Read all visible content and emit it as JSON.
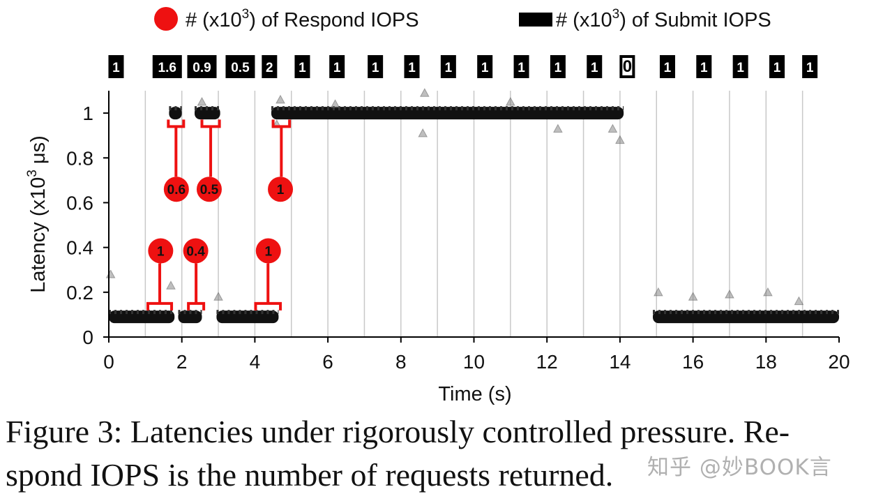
{
  "chart_data": {
    "type": "scatter",
    "xlabel": "Time (s)",
    "ylabel": "Latency (x10",
    "ylabel_sup": "3",
    "ylabel_unit": " μs)",
    "xlim": [
      0,
      20
    ],
    "ylim": [
      0,
      1.1
    ],
    "x_ticks": [
      0,
      2,
      4,
      6,
      8,
      10,
      12,
      14,
      16,
      18,
      20
    ],
    "y_ticks": [
      0,
      0.2,
      0.4,
      0.6,
      0.8,
      1
    ],
    "y_tick_labels": [
      "0",
      "0.2",
      "0.4",
      "0.6",
      "0.8",
      "1"
    ],
    "grid": "vertical lines every 1 s",
    "legend": {
      "placement": "top",
      "respond": {
        "prefix": "# (x10",
        "sup": "3",
        "suffix": ") of Respond IOPS",
        "color": "#ee1111",
        "marker": "circle"
      },
      "submit": {
        "prefix": "# (x10",
        "sup": "3",
        "suffix": ") of Submit IOPS",
        "color": "#000000",
        "marker": "square"
      }
    },
    "latency_segments": [
      {
        "x_start": 0.0,
        "x_end": 1.8,
        "latency": 0.09
      },
      {
        "x_start": 1.65,
        "x_end": 2.0,
        "latency": 1.0
      },
      {
        "x_start": 1.9,
        "x_end": 2.55,
        "latency": 0.09
      },
      {
        "x_start": 2.35,
        "x_end": 3.05,
        "latency": 1.0
      },
      {
        "x_start": 2.95,
        "x_end": 4.65,
        "latency": 0.09
      },
      {
        "x_start": 4.45,
        "x_end": 14.1,
        "latency": 1.0
      },
      {
        "x_start": 14.9,
        "x_end": 20.0,
        "latency": 0.09
      }
    ],
    "outliers": [
      {
        "x": 0.05,
        "y": 0.28
      },
      {
        "x": 1.7,
        "y": 0.23
      },
      {
        "x": 2.55,
        "y": 1.05
      },
      {
        "x": 4.7,
        "y": 1.06
      },
      {
        "x": 4.6,
        "y": 0.95
      },
      {
        "x": 8.65,
        "y": 1.09
      },
      {
        "x": 8.6,
        "y": 0.91
      },
      {
        "x": 12.3,
        "y": 0.93
      },
      {
        "x": 13.8,
        "y": 0.93
      },
      {
        "x": 14.0,
        "y": 0.88
      },
      {
        "x": 15.05,
        "y": 0.2
      },
      {
        "x": 16.0,
        "y": 0.18
      },
      {
        "x": 17.0,
        "y": 0.19
      },
      {
        "x": 18.05,
        "y": 0.2
      },
      {
        "x": 18.9,
        "y": 0.16
      },
      {
        "x": 3.0,
        "y": 0.18
      },
      {
        "x": 11.0,
        "y": 1.05
      },
      {
        "x": 6.2,
        "y": 1.04
      }
    ],
    "submit_iops": [
      {
        "x": 0.2,
        "label": "1",
        "invert": false
      },
      {
        "x": 1.6,
        "label": "1.6",
        "invert": false
      },
      {
        "x": 2.55,
        "label": "0.9",
        "invert": false
      },
      {
        "x": 3.6,
        "label": "0.5",
        "invert": false
      },
      {
        "x": 4.4,
        "label": "2",
        "invert": false
      },
      {
        "x": 5.3,
        "label": "1",
        "invert": false
      },
      {
        "x": 6.25,
        "label": "1",
        "invert": false
      },
      {
        "x": 7.3,
        "label": "1",
        "invert": false
      },
      {
        "x": 8.3,
        "label": "1",
        "invert": false
      },
      {
        "x": 9.3,
        "label": "1",
        "invert": false
      },
      {
        "x": 10.3,
        "label": "1",
        "invert": false
      },
      {
        "x": 11.3,
        "label": "1",
        "invert": false
      },
      {
        "x": 12.3,
        "label": "1",
        "invert": false
      },
      {
        "x": 13.3,
        "label": "1",
        "invert": false
      },
      {
        "x": 14.2,
        "label": "0",
        "invert": true
      },
      {
        "x": 15.3,
        "label": "1",
        "invert": false
      },
      {
        "x": 16.3,
        "label": "1",
        "invert": false
      },
      {
        "x": 17.3,
        "label": "1",
        "invert": false
      },
      {
        "x": 18.3,
        "label": "1",
        "invert": false
      },
      {
        "x": 19.2,
        "label": "1",
        "invert": false
      }
    ],
    "respond_iops": [
      {
        "label": "1",
        "x": 1.42,
        "y": 0.385,
        "bracket_start": 1.07,
        "bracket_end": 1.72,
        "bracket_y": 0.15
      },
      {
        "label": "0.4",
        "x": 2.38,
        "y": 0.385,
        "bracket_start": 2.18,
        "bracket_end": 2.6,
        "bracket_y": 0.15
      },
      {
        "label": "1",
        "x": 4.37,
        "y": 0.385,
        "bracket_start": 4.02,
        "bracket_end": 4.7,
        "bracket_y": 0.15
      },
      {
        "label": "0.6",
        "x": 1.85,
        "y": 0.66,
        "bracket_start": 1.63,
        "bracket_end": 2.05,
        "bracket_y": 0.94
      },
      {
        "label": "0.5",
        "x": 2.75,
        "y": 0.66,
        "bracket_start": 2.55,
        "bracket_end": 3.03,
        "bracket_y": 0.94
      },
      {
        "label": "1",
        "x": 4.7,
        "y": 0.66,
        "bracket_start": 4.5,
        "bracket_end": 4.95,
        "bracket_y": 0.94
      }
    ]
  },
  "caption": {
    "line1": "Figure 3: Latencies under rigorously controlled pressure. Re-",
    "line2": "spond IOPS is the number of requests returned."
  },
  "watermark": "知乎 @妙BOOK言"
}
